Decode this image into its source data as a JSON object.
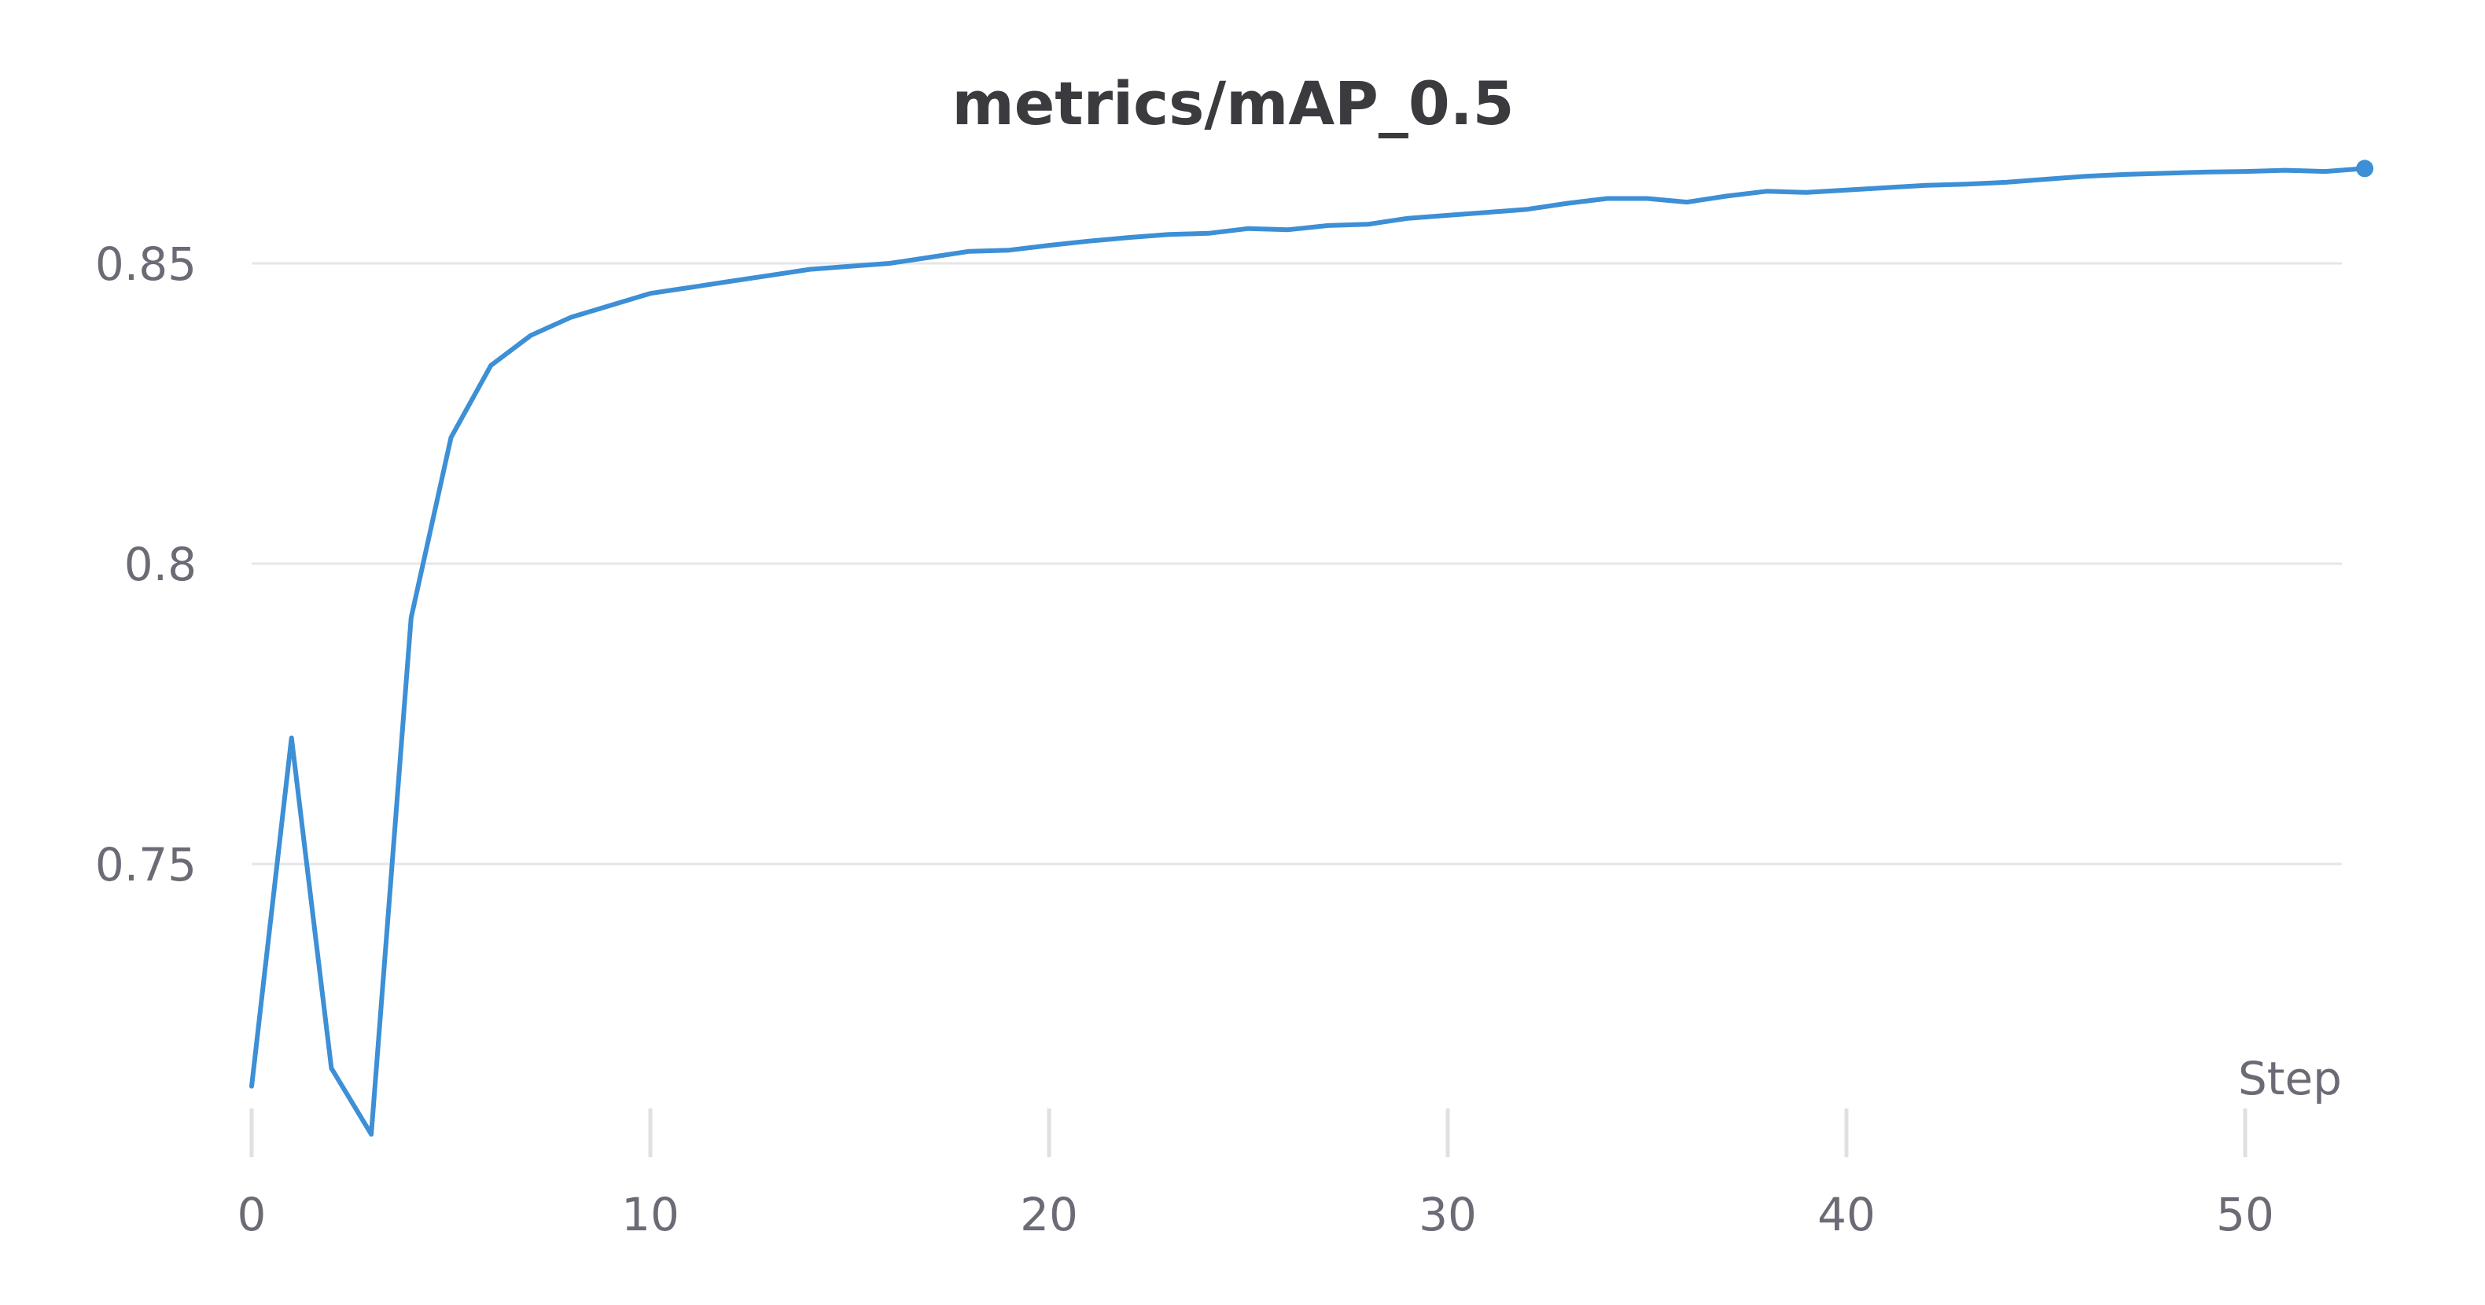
{
  "chart_data": {
    "type": "line",
    "title": "metrics/mAP_0.5",
    "xlabel": "Step",
    "ylabel": "",
    "xlim": [
      0,
      53
    ],
    "ylim": [
      0.7,
      0.868
    ],
    "x_ticks": [
      0,
      10,
      20,
      30,
      40,
      50
    ],
    "y_ticks": [
      0.75,
      0.8,
      0.85
    ],
    "x_tick_labels": [
      "0",
      "10",
      "20",
      "30",
      "40",
      "50"
    ],
    "y_tick_labels": [
      "0.75",
      "0.8",
      "0.85"
    ],
    "grid": "horizontal",
    "legend": "none",
    "line_color": "#3d8fd6",
    "series": [
      {
        "x": [
          0,
          1,
          2,
          3,
          4,
          5,
          6,
          7,
          8,
          9,
          10,
          11,
          12,
          13,
          14,
          15,
          16,
          17,
          18,
          19,
          20,
          21,
          22,
          23,
          24,
          25,
          26,
          27,
          28,
          29,
          30,
          31,
          32,
          33,
          34,
          35,
          36,
          37,
          38,
          39,
          40,
          41,
          42,
          43,
          44,
          45,
          46,
          47,
          48,
          49,
          50,
          51,
          52,
          53
        ],
        "values": [
          0.713,
          0.771,
          0.716,
          0.705,
          0.791,
          0.821,
          0.833,
          0.838,
          0.841,
          0.843,
          0.845,
          0.846,
          0.847,
          0.848,
          0.849,
          0.8495,
          0.85,
          0.851,
          0.852,
          0.8522,
          0.853,
          0.8537,
          0.8543,
          0.8548,
          0.855,
          0.8558,
          0.8556,
          0.8563,
          0.8565,
          0.8575,
          0.858,
          0.8585,
          0.859,
          0.86,
          0.8608,
          0.8608,
          0.8602,
          0.8612,
          0.862,
          0.8618,
          0.8622,
          0.8626,
          0.863,
          0.8632,
          0.8635,
          0.864,
          0.8645,
          0.8648,
          0.865,
          0.8652,
          0.8653,
          0.8655,
          0.8653,
          0.8658
        ]
      }
    ]
  }
}
